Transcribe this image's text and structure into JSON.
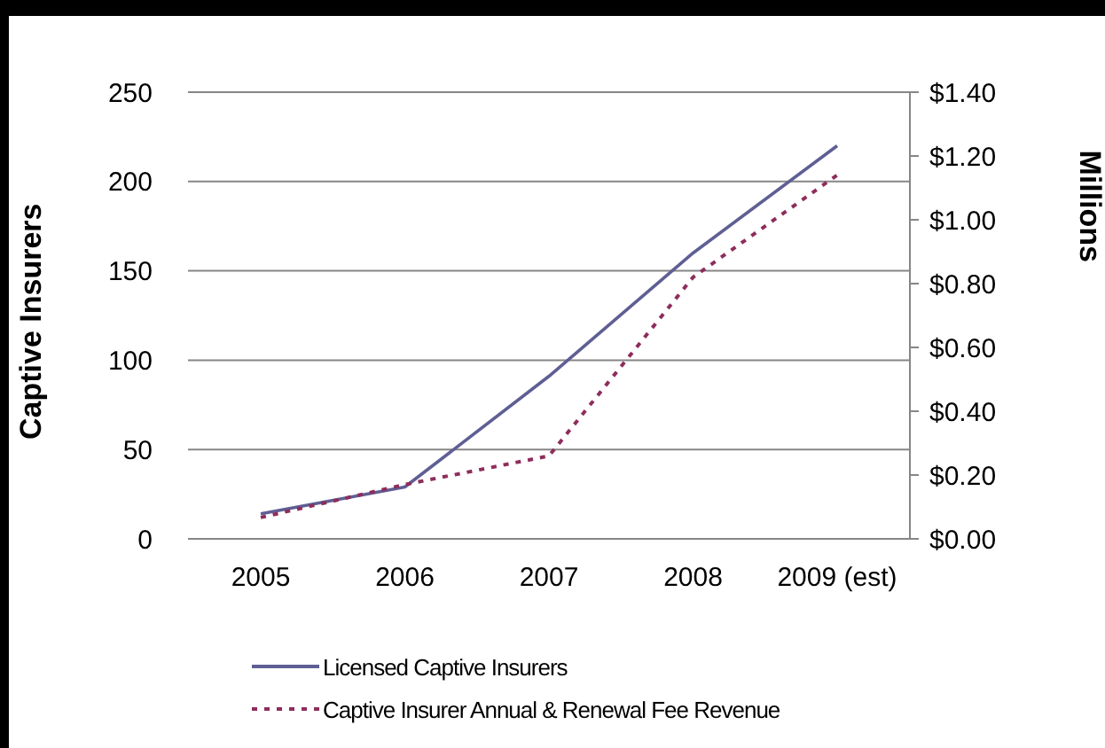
{
  "chart_data": {
    "type": "line",
    "categories": [
      "2005",
      "2006",
      "2007",
      "2008",
      "2009 (est)"
    ],
    "ylabel": "Captive Insurers",
    "y2label": "Millions",
    "series": [
      {
        "name": "Licensed Captive Insurers",
        "color": "#5f5f95",
        "values": [
          14,
          29,
          91,
          160,
          220
        ],
        "line_style": "solid"
      },
      {
        "name": "Captive Insurer Annual & Renewal Fee Revenue",
        "color": "#8e2d5c",
        "values": [
          0.067,
          0.17,
          0.26,
          0.82,
          1.14
        ],
        "axis": "y2",
        "line_style": "dotted"
      }
    ],
    "ylim": [
      0,
      250
    ],
    "yticks": [
      0,
      50,
      100,
      150,
      200,
      250
    ],
    "y2lim": [
      0,
      1.4
    ],
    "y2ticks": [
      {
        "value": 0,
        "label": "$0.00"
      },
      {
        "value": 0.2,
        "label": "$0.20"
      },
      {
        "value": 0.4,
        "label": "$0.40"
      },
      {
        "value": 0.6,
        "label": "$0.60"
      },
      {
        "value": 0.8,
        "label": "$0.80"
      },
      {
        "value": 1,
        "label": "$1.00"
      },
      {
        "value": 1.2,
        "label": "$1.20"
      },
      {
        "value": 1.4,
        "label": "$1.40"
      }
    ],
    "grid": "y",
    "legend": "bottom",
    "marker": "none"
  }
}
